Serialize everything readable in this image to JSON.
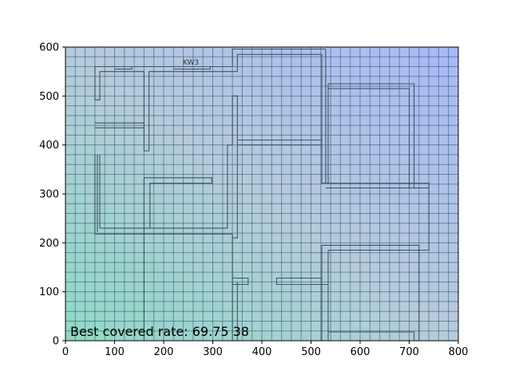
{
  "chart_data": {
    "type": "heatmap",
    "title": "",
    "xlabel": "",
    "ylabel": "",
    "xlim": [
      0,
      800
    ],
    "ylim": [
      0,
      600
    ],
    "xticks": [
      0,
      100,
      200,
      300,
      400,
      500,
      600,
      700,
      800
    ],
    "yticks": [
      0,
      100,
      200,
      300,
      400,
      500,
      600
    ],
    "grid_step": 20,
    "grid": true,
    "gradient_colors": {
      "bottom_left": "#8fd9c3",
      "top_right": "#a9b8f6",
      "center": "#b7cbd9"
    },
    "grid_color": "#2b5c86",
    "wall_color": "#3f5568",
    "annotation": "Best covered rate: 69.75  38",
    "room_label": "KW3",
    "walls": [
      [
        [
          60,
          492
        ],
        [
          60,
          560
        ],
        [
          340,
          560
        ],
        [
          340,
          596
        ],
        [
          530,
          596
        ]
      ],
      [
        [
          60,
          492
        ],
        [
          70,
          492
        ],
        [
          70,
          550
        ],
        [
          160,
          550
        ],
        [
          160,
          388
        ],
        [
          170,
          388
        ],
        [
          170,
          550
        ],
        [
          350,
          550
        ],
        [
          350,
          585
        ],
        [
          522,
          585
        ],
        [
          522,
          322
        ],
        [
          530,
          322
        ]
      ],
      [
        [
          530,
          596
        ],
        [
          530,
          322
        ]
      ],
      [
        [
          60,
          445
        ],
        [
          160,
          445
        ]
      ],
      [
        [
          60,
          435
        ],
        [
          160,
          435
        ]
      ],
      [
        [
          60,
          380
        ],
        [
          60,
          218
        ],
        [
          340,
          218
        ],
        [
          340,
          0
        ]
      ],
      [
        [
          70,
          380
        ],
        [
          70,
          230
        ],
        [
          330,
          230
        ],
        [
          330,
          400
        ],
        [
          340,
          400
        ]
      ],
      [
        [
          340,
          400
        ],
        [
          340,
          500
        ],
        [
          350,
          500
        ],
        [
          350,
          400
        ],
        [
          522,
          400
        ],
        [
          522,
          410
        ],
        [
          350,
          410
        ]
      ],
      [
        [
          350,
          400
        ],
        [
          350,
          210
        ],
        [
          340,
          210
        ]
      ],
      [
        [
          65,
          380
        ],
        [
          65,
          222
        ]
      ],
      [
        [
          160,
          333
        ],
        [
          160,
          0
        ]
      ],
      [
        [
          160,
          333
        ],
        [
          298,
          333
        ],
        [
          298,
          322
        ],
        [
          172,
          322
        ],
        [
          172,
          230
        ]
      ],
      [
        [
          350,
          120
        ],
        [
          350,
          0
        ]
      ],
      [
        [
          340,
          128
        ],
        [
          372,
          128
        ],
        [
          372,
          115
        ],
        [
          340,
          115
        ]
      ],
      [
        [
          430,
          128
        ],
        [
          522,
          128
        ],
        [
          522,
          0
        ],
        [
          340,
          0
        ]
      ],
      [
        [
          430,
          128
        ],
        [
          430,
          115
        ],
        [
          535,
          115
        ],
        [
          535,
          0
        ]
      ],
      [
        [
          522,
          195
        ],
        [
          720,
          195
        ],
        [
          720,
          0
        ]
      ],
      [
        [
          522,
          195
        ],
        [
          522,
          128
        ]
      ],
      [
        [
          535,
          185
        ],
        [
          740,
          185
        ],
        [
          740,
          322
        ]
      ],
      [
        [
          535,
          185
        ],
        [
          535,
          115
        ]
      ],
      [
        [
          530,
          312
        ],
        [
          740,
          312
        ],
        [
          740,
          322
        ],
        [
          530,
          322
        ]
      ],
      [
        [
          535,
          525
        ],
        [
          710,
          525
        ],
        [
          710,
          312
        ]
      ],
      [
        [
          535,
          515
        ],
        [
          700,
          515
        ],
        [
          700,
          312
        ]
      ],
      [
        [
          535,
          525
        ],
        [
          535,
          322
        ]
      ],
      [
        [
          535,
          18
        ],
        [
          710,
          18
        ],
        [
          710,
          0
        ]
      ],
      [
        [
          100,
          555
        ],
        [
          135,
          555
        ],
        [
          135,
          560
        ]
      ],
      [
        [
          220,
          555
        ],
        [
          295,
          555
        ],
        [
          295,
          560
        ]
      ]
    ]
  }
}
